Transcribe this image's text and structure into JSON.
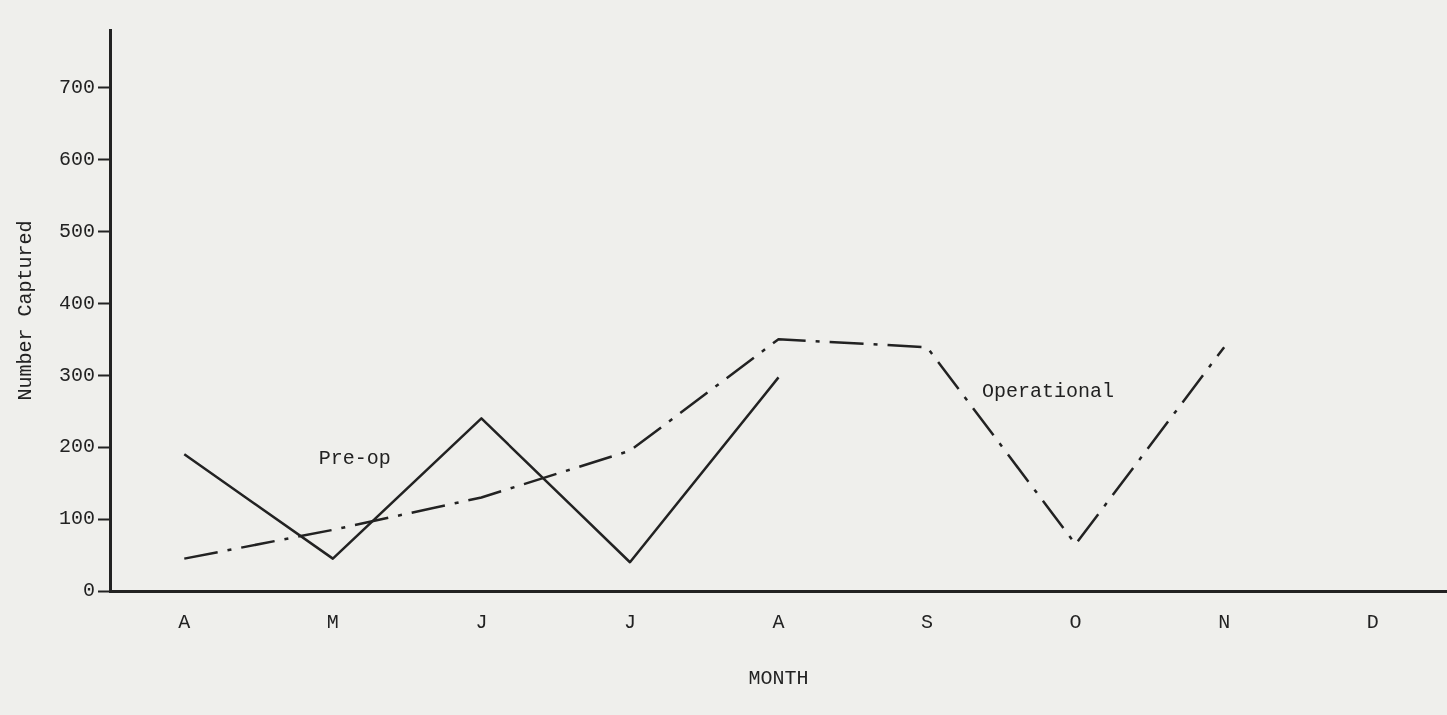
{
  "chart_data": {
    "type": "line",
    "xlabel": "MONTH",
    "ylabel": "Number Captured",
    "categories": [
      "A",
      "M",
      "J",
      "J",
      "A",
      "S",
      "O",
      "N",
      "D"
    ],
    "series": [
      {
        "name": "Pre-op",
        "color": "#222222",
        "line_style": "solid",
        "values": [
          190,
          45,
          240,
          40,
          297,
          null,
          null,
          null,
          null
        ]
      },
      {
        "name": "Operational",
        "color": "#222222",
        "line_style": "dashed",
        "values": [
          45,
          85,
          130,
          195,
          350,
          339,
          65,
          339,
          null
        ]
      }
    ],
    "ylim": [
      0,
      780
    ],
    "yticks": [
      0,
      100,
      200,
      300,
      400,
      500,
      600,
      700
    ],
    "grid": false,
    "legend": false,
    "marker": "none"
  }
}
